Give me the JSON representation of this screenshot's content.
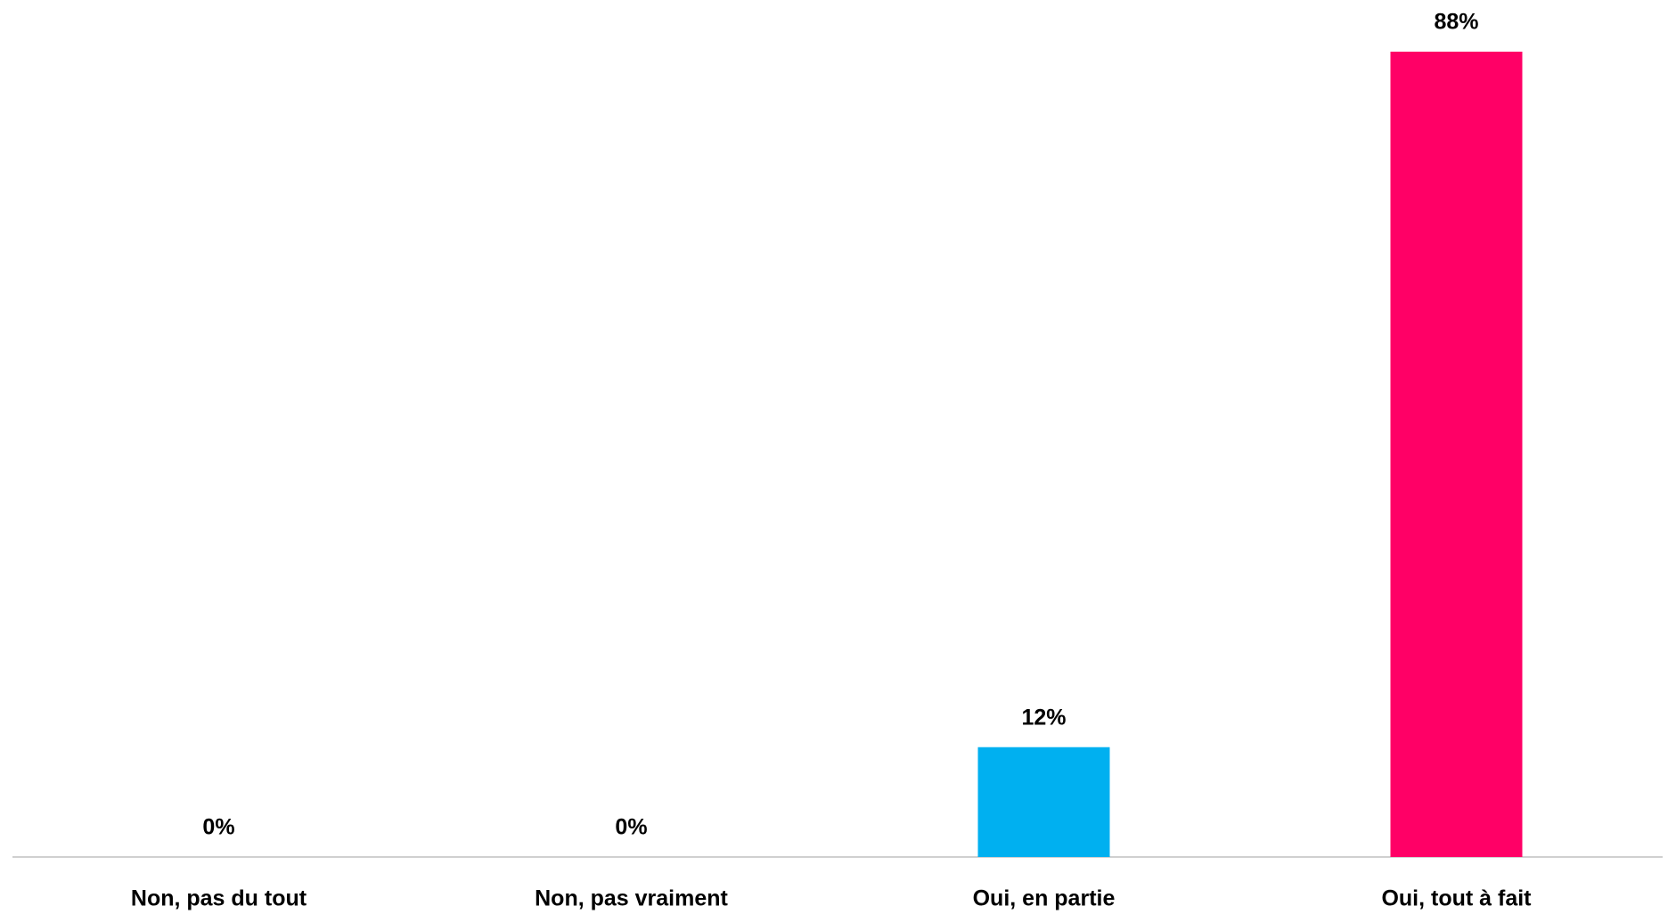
{
  "chart_data": {
    "type": "bar",
    "categories": [
      "Non, pas du tout",
      "Non, pas vraiment",
      "Oui, en partie",
      "Oui, tout à fait"
    ],
    "values": [
      0,
      0,
      12,
      88
    ],
    "value_labels": [
      "0%",
      "0%",
      "12%",
      "88%"
    ],
    "colors": [
      "#00b0f0",
      "#00b0f0",
      "#00b0f0",
      "#ff0066"
    ]
  }
}
